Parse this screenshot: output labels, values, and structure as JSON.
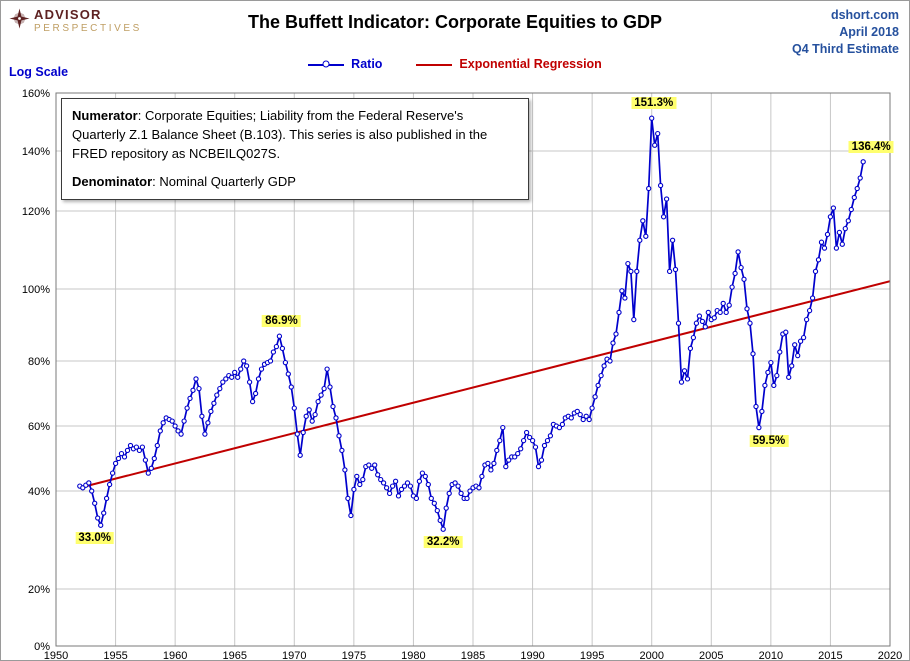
{
  "header": {
    "logo_line1": "ADVISOR",
    "logo_line2": "PERSPECTIVES",
    "title": "The Buffett Indicator: Corporate Equities to GDP",
    "source": "dshort.com",
    "date": "April 2018",
    "estimate": "Q4 Third Estimate",
    "source_color": "#26519E",
    "logo_maroon": "#5E2222",
    "logo_tan": "#BF9E63"
  },
  "legend": [
    {
      "label": "Ratio",
      "color": "#0000CC",
      "marker": true
    },
    {
      "label": "Exponential Regression",
      "color": "#C00000",
      "marker": false
    }
  ],
  "note_box": {
    "numerator_label": "Numerator",
    "numerator_text": ": Corporate Equities; Liability from the Federal Reserve's Quarterly Z.1 Balance Sheet (B.103). This series is also published in the FRED repository as NCBEILQ027S.",
    "denominator_label": "Denominator",
    "denominator_text": ": Nominal Quarterly GDP"
  },
  "chart_data": {
    "type": "line",
    "title": "The Buffett Indicator: Corporate Equities to GDP",
    "y_scale_label": "Log Scale",
    "xlim": [
      1950,
      2020
    ],
    "x_ticks": [
      1950,
      1955,
      1960,
      1965,
      1970,
      1975,
      1980,
      1985,
      1990,
      1995,
      2000,
      2005,
      2010,
      2015,
      2020
    ],
    "y_ticks": [
      0,
      20,
      40,
      60,
      80,
      100,
      120,
      140,
      160
    ],
    "y_tick_suffix": "%",
    "grid": true,
    "legend_position": "top",
    "annotation_bg": "#FFFF6E",
    "series": [
      {
        "name": "Ratio",
        "color": "#0000CC",
        "marker": "circle",
        "x_start": 1952.0,
        "x_step": 0.25,
        "unit": "percent of GDP",
        "values": [
          41.5,
          41.0,
          41.8,
          42.5,
          40.0,
          37.5,
          34.5,
          33.0,
          35.5,
          38.5,
          42.0,
          45.5,
          48.5,
          50.0,
          51.5,
          50.5,
          52.5,
          54.0,
          53.0,
          53.5,
          52.5,
          53.5,
          49.5,
          45.5,
          47.0,
          50.0,
          54.0,
          58.5,
          61.0,
          62.5,
          62.0,
          61.5,
          60.0,
          58.5,
          57.5,
          61.5,
          65.5,
          68.5,
          71.0,
          74.5,
          71.5,
          63.0,
          57.5,
          61.0,
          64.5,
          67.0,
          69.5,
          71.5,
          73.5,
          74.5,
          75.5,
          75.0,
          76.5,
          75.0,
          77.5,
          80.0,
          78.5,
          73.5,
          67.5,
          70.0,
          74.5,
          77.5,
          79.0,
          79.5,
          80.0,
          82.5,
          84.0,
          86.9,
          83.5,
          79.5,
          76.0,
          72.0,
          65.5,
          57.5,
          51.0,
          58.0,
          63.0,
          65.0,
          61.5,
          63.5,
          67.5,
          69.5,
          71.5,
          77.5,
          72.0,
          66.0,
          62.5,
          57.0,
          52.5,
          46.5,
          38.5,
          35.0,
          40.5,
          44.5,
          42.0,
          43.5,
          47.5,
          48.0,
          47.0,
          48.0,
          45.0,
          43.5,
          42.5,
          41.0,
          39.5,
          41.5,
          43.0,
          39.0,
          40.5,
          41.5,
          42.5,
          41.5,
          39.0,
          38.5,
          43.0,
          45.5,
          44.5,
          42.0,
          38.5,
          37.5,
          36.0,
          34.0,
          32.2,
          36.5,
          39.5,
          42.0,
          42.5,
          41.5,
          39.5,
          38.5,
          38.5,
          40.0,
          41.0,
          41.5,
          41.0,
          44.5,
          48.0,
          48.5,
          46.5,
          48.5,
          52.5,
          55.5,
          59.5,
          47.5,
          49.5,
          50.5,
          50.5,
          51.5,
          53.0,
          55.5,
          58.0,
          56.5,
          55.5,
          53.5,
          47.5,
          49.5,
          54.0,
          55.5,
          57.0,
          60.5,
          60.0,
          59.5,
          60.5,
          62.5,
          63.0,
          62.5,
          64.0,
          64.5,
          63.5,
          62.0,
          63.0,
          62.0,
          65.5,
          69.0,
          72.5,
          75.5,
          78.5,
          80.5,
          80.0,
          85.0,
          87.5,
          93.5,
          99.5,
          97.5,
          106.5,
          104.5,
          91.5,
          104.5,
          112.5,
          117.5,
          113.5,
          127.5,
          151.3,
          142.0,
          146.0,
          128.5,
          118.5,
          124.0,
          104.5,
          112.5,
          105.0,
          90.5,
          73.5,
          77.0,
          74.5,
          83.5,
          86.5,
          90.5,
          92.5,
          91.0,
          89.5,
          93.5,
          91.5,
          92.0,
          94.0,
          93.5,
          96.0,
          93.5,
          95.5,
          100.5,
          104.0,
          109.5,
          105.5,
          102.5,
          94.5,
          90.5,
          82.0,
          66.0,
          59.5,
          64.5,
          72.5,
          76.5,
          79.5,
          72.5,
          75.5,
          82.5,
          87.5,
          88.0,
          75.0,
          78.5,
          84.5,
          81.5,
          85.5,
          86.5,
          91.5,
          94.0,
          97.5,
          104.5,
          107.5,
          112.0,
          110.5,
          114.0,
          118.5,
          121.0,
          110.5,
          114.5,
          111.5,
          115.5,
          117.5,
          120.5,
          124.5,
          127.5,
          131.0,
          136.4
        ]
      },
      {
        "name": "Exponential Regression",
        "color": "#C00000",
        "type": "regression",
        "points": [
          [
            1952.0,
            41.0
          ],
          [
            2020.0,
            102.0
          ]
        ]
      }
    ],
    "annotations": [
      {
        "label": "33.0%",
        "x": 1953.75,
        "value": 33.0,
        "placement": "below",
        "dx": -6
      },
      {
        "label": "86.9%",
        "x": 1968.75,
        "value": 86.9,
        "placement": "above",
        "dx": 2
      },
      {
        "label": "32.2%",
        "x": 1982.5,
        "value": 32.2,
        "placement": "below",
        "dx": 0
      },
      {
        "label": "151.3%",
        "x": 2000.0,
        "value": 151.3,
        "placement": "above",
        "dx": 2
      },
      {
        "label": "59.5%",
        "x": 2009.0,
        "value": 59.5,
        "placement": "below",
        "dx": 10
      },
      {
        "label": "136.4%",
        "x": 2017.75,
        "value": 136.4,
        "placement": "above",
        "dx": 8
      }
    ]
  }
}
